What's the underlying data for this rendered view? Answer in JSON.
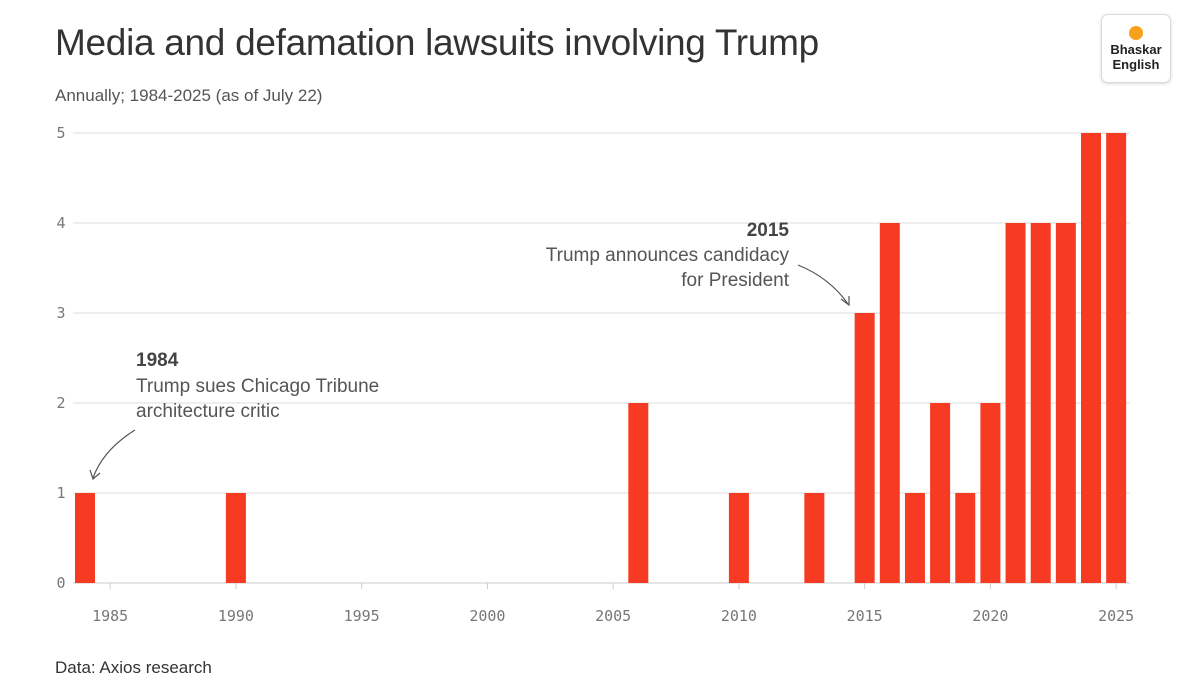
{
  "header": {
    "title": "Media and defamation lawsuits involving Trump",
    "subtitle": "Annually; 1984-2025 (as of July 22)"
  },
  "footer": {
    "source": "Data: Axios research"
  },
  "logo": {
    "line1": "Bhaskar",
    "line2": "English",
    "dot_color": "#f7a21b"
  },
  "colors": {
    "bar": "#f73b22",
    "grid": "#dddddd",
    "axis": "#cccccc"
  },
  "chart_data": {
    "type": "bar",
    "title": "Media and defamation lawsuits involving Trump",
    "subtitle": "Annually; 1984-2025 (as of July 22)",
    "xlabel": "",
    "ylabel": "",
    "x": [
      1984,
      1990,
      2006,
      2010,
      2013,
      2015,
      2016,
      2017,
      2018,
      2019,
      2020,
      2021,
      2022,
      2023,
      2024,
      2025
    ],
    "values": [
      1,
      1,
      2,
      1,
      1,
      3,
      4,
      1,
      2,
      1,
      2,
      4,
      4,
      4,
      5,
      5
    ],
    "xlim": [
      1984,
      2025
    ],
    "ylim": [
      0,
      5
    ],
    "x_ticks": [
      "1985",
      "1990",
      "1995",
      "2000",
      "2005",
      "2010",
      "2015",
      "2020",
      "2025"
    ],
    "y_ticks": [
      "0",
      "1",
      "2",
      "3",
      "4",
      "5"
    ],
    "grid": "horizontal",
    "annotations": [
      {
        "year": "1984",
        "lines": [
          "Trump sues Chicago Tribune",
          "architecture critic"
        ]
      },
      {
        "year": "2015",
        "lines": [
          "Trump announces candidacy",
          "for President"
        ]
      }
    ]
  }
}
